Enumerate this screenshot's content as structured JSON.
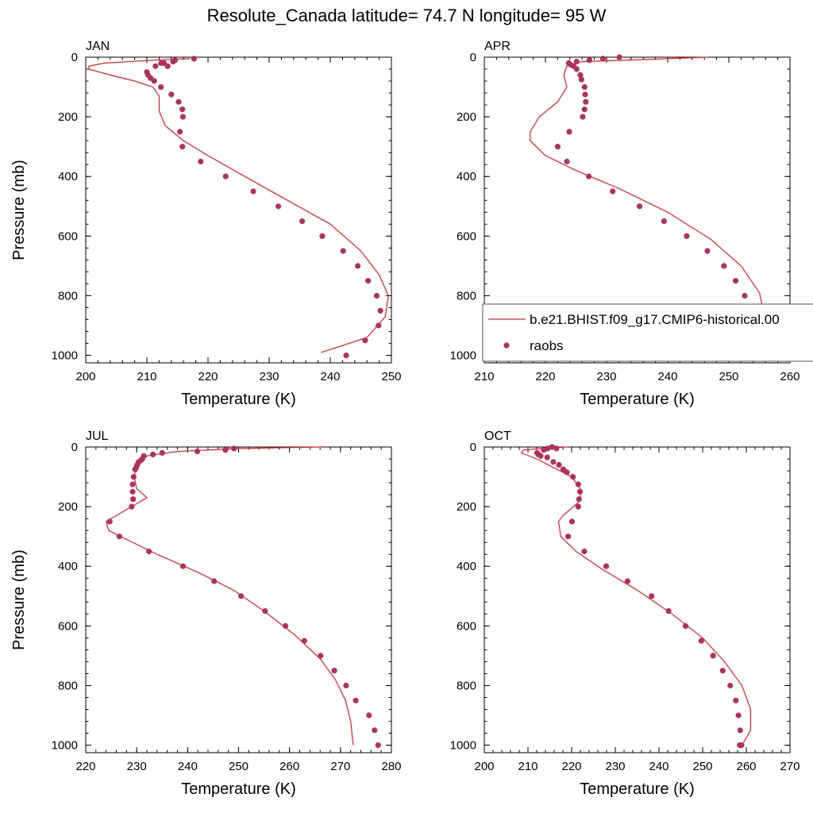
{
  "figure_title": "Resolute_Canada  latitude= 74.7 N longitude= 95 W",
  "colors": {
    "model": "#ff1a1a",
    "obs": "#b03060",
    "axis": "#000000"
  },
  "legend": {
    "model_label": "b.e21.BHIST.f09_g17.CMIP6-historical.00",
    "obs_label": "raobs"
  },
  "chart_data": [
    {
      "type": "line",
      "title": "JAN",
      "xlabel": "Temperature (K)",
      "ylabel": "Pressure (mb)",
      "xlim": [
        200,
        250
      ],
      "ylim": [
        1025,
        0
      ],
      "xticks": [
        200,
        210,
        220,
        230,
        240,
        250
      ],
      "yticks": [
        0,
        200,
        400,
        600,
        800,
        1000
      ],
      "grid": false,
      "series": [
        {
          "kind": "line",
          "x": [
            217,
            211,
            203,
            200.5,
            200.5,
            204,
            208,
            211,
            212,
            212,
            213,
            216,
            220,
            226,
            233,
            240,
            245,
            248,
            249.5,
            249,
            246,
            238.5
          ],
          "y": [
            5,
            10,
            20,
            30,
            40,
            60,
            80,
            100,
            130,
            180,
            230,
            280,
            330,
            400,
            480,
            560,
            650,
            730,
            800,
            870,
            940,
            990
          ]
        },
        {
          "kind": "scatter",
          "x": [
            217.7,
            214.6,
            214.3,
            212.8,
            213.4,
            212.3,
            211.4,
            210,
            210.2,
            210.6,
            211.2,
            212.3,
            214,
            215.2,
            215.8,
            215.9,
            215.4,
            215.8,
            218.8,
            222.9,
            227.4,
            231.5,
            235.4,
            238.7,
            242.1,
            244.5,
            246.2,
            247.6,
            248.2,
            247.9,
            245.7,
            242.6
          ],
          "y": [
            5,
            10,
            15,
            20,
            30,
            20,
            30,
            50,
            60,
            70,
            80,
            100,
            125,
            150,
            175,
            200,
            250,
            300,
            350,
            400,
            450,
            500,
            550,
            600,
            650,
            700,
            750,
            800,
            850,
            900,
            950,
            1000
          ]
        }
      ]
    },
    {
      "type": "line",
      "title": "APR",
      "xlabel": "Temperature (K)",
      "ylabel": "",
      "xlim": [
        210,
        260
      ],
      "ylim": [
        1025,
        0
      ],
      "xticks": [
        210,
        220,
        230,
        240,
        250,
        260
      ],
      "yticks": [
        0,
        200,
        400,
        600,
        800,
        1000
      ],
      "grid": false,
      "series": [
        {
          "kind": "line",
          "x": [
            246.5,
            236,
            226,
            223.5,
            223,
            223.5,
            222,
            219,
            217.5,
            217.5,
            220,
            225,
            232,
            240,
            247,
            252,
            255,
            256,
            254,
            251
          ],
          "y": [
            0,
            8,
            15,
            30,
            60,
            100,
            150,
            200,
            250,
            280,
            330,
            380,
            440,
            520,
            610,
            700,
            790,
            880,
            960,
            1000
          ]
        },
        {
          "kind": "scatter",
          "x": [
            232.1,
            229.4,
            227.2,
            225.1,
            223.8,
            224.1,
            224.6,
            225.1,
            225.7,
            225.9,
            226.4,
            226.5,
            226.6,
            226.4,
            226.1,
            223.9,
            222,
            223.5,
            227.1,
            231,
            235.4,
            239.4,
            243.1,
            246.5,
            249.2,
            251.1,
            252.6,
            253.5,
            254.3,
            253.2,
            251
          ],
          "y": [
            0,
            5,
            10,
            15,
            20,
            25,
            30,
            40,
            60,
            75,
            100,
            125,
            150,
            175,
            200,
            250,
            300,
            350,
            400,
            450,
            500,
            550,
            600,
            650,
            700,
            750,
            800,
            850,
            900,
            950,
            1000
          ]
        }
      ]
    },
    {
      "type": "line",
      "title": "JUL",
      "xlabel": "Temperature (K)",
      "ylabel": "Pressure (mb)",
      "xlim": [
        220,
        280
      ],
      "ylim": [
        1025,
        0
      ],
      "xticks": [
        220,
        230,
        240,
        250,
        260,
        270,
        280
      ],
      "yticks": [
        0,
        200,
        400,
        600,
        800,
        1000
      ],
      "grid": false,
      "series": [
        {
          "kind": "line",
          "x": [
            266.5,
            250,
            238,
            232,
            230,
            229.5,
            230,
            232,
            229,
            226,
            224,
            224.5,
            228,
            234,
            242,
            249,
            255,
            261,
            266,
            269,
            271,
            272,
            272.5
          ],
          "y": [
            0,
            5,
            15,
            30,
            60,
            100,
            140,
            170,
            200,
            230,
            250,
            280,
            310,
            360,
            420,
            480,
            550,
            630,
            710,
            780,
            850,
            920,
            1000
          ]
        },
        {
          "kind": "scatter",
          "x": [
            249.1,
            247.4,
            241.9,
            235,
            233.2,
            231.4,
            231.1,
            230.8,
            230.4,
            230.1,
            229.9,
            229.7,
            229.4,
            229.2,
            229.2,
            229.3,
            229,
            224.7,
            226.6,
            232.4,
            239.1,
            245.2,
            250.5,
            255.2,
            259.2,
            262.9,
            266.1,
            268.8,
            271.1,
            273,
            275.6,
            276.7,
            277.4
          ],
          "y": [
            5,
            10,
            15,
            20,
            25,
            30,
            40,
            45,
            50,
            60,
            70,
            75,
            100,
            125,
            150,
            175,
            200,
            250,
            300,
            350,
            400,
            450,
            500,
            550,
            600,
            650,
            700,
            750,
            800,
            850,
            900,
            950,
            1000
          ]
        }
      ]
    },
    {
      "type": "line",
      "title": "OCT",
      "xlabel": "Temperature (K)",
      "ylabel": "",
      "xlim": [
        200,
        270
      ],
      "ylim": [
        1025,
        0
      ],
      "xticks": [
        200,
        210,
        220,
        230,
        240,
        250,
        260,
        270
      ],
      "yticks": [
        0,
        200,
        400,
        600,
        800,
        1000
      ],
      "grid": false,
      "series": [
        {
          "kind": "line",
          "x": [
            219,
            213,
            209,
            208.5,
            212,
            216,
            220,
            222,
            222,
            218,
            217,
            217.5,
            221,
            227,
            235,
            243,
            250,
            255,
            259,
            261,
            261,
            259
          ],
          "y": [
            0,
            5,
            10,
            20,
            40,
            70,
            100,
            140,
            180,
            230,
            250,
            300,
            350,
            410,
            480,
            560,
            640,
            720,
            800,
            880,
            950,
            1000
          ]
        },
        {
          "kind": "scatter",
          "x": [
            215.5,
            216.5,
            214.5,
            213.6,
            212.1,
            212.4,
            212.9,
            214.4,
            215.8,
            217.1,
            218.1,
            218.9,
            220.3,
            221.5,
            221.9,
            221.7,
            221.5,
            220.1,
            219.2,
            222.9,
            227.9,
            232.8,
            238.3,
            242.2,
            246.1,
            249.7,
            252.4,
            254.6,
            256.3,
            257.6,
            258.2,
            258.6,
            258.9,
            258.5
          ],
          "y": [
            0,
            5,
            5,
            10,
            20,
            25,
            30,
            35,
            50,
            60,
            75,
            85,
            100,
            125,
            150,
            175,
            200,
            250,
            300,
            350,
            400,
            450,
            500,
            550,
            600,
            650,
            700,
            750,
            800,
            850,
            900,
            950,
            1000,
            1000
          ]
        }
      ]
    }
  ]
}
